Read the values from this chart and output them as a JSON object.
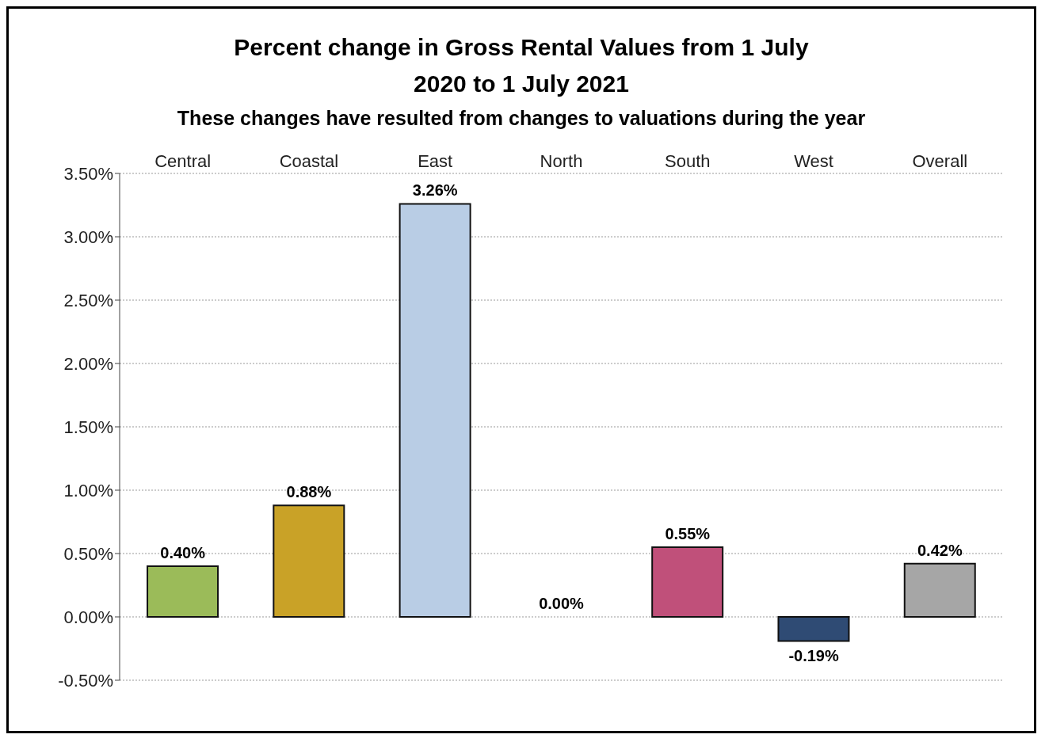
{
  "chart_data": {
    "type": "bar",
    "title": "Percent change in Gross Rental Values from 1 July 2020 to 1 July 2021",
    "subtitle": "These changes have resulted from changes to valuations during the year",
    "categories": [
      "Central",
      "Coastal",
      "East",
      "North",
      "South",
      "West",
      "Overall"
    ],
    "values": [
      0.4,
      0.88,
      3.26,
      0.0,
      0.55,
      -0.19,
      0.42
    ],
    "colors": [
      "#9bbb59",
      "#c9a227",
      "#b9cde5",
      "#808080",
      "#c0507a",
      "#2f4b74",
      "#a6a6a6"
    ],
    "value_labels": [
      "0.40%",
      "0.88%",
      "3.26%",
      "0.00%",
      "0.55%",
      "-0.19%",
      "0.42%"
    ],
    "ylim": [
      -0.5,
      3.5
    ],
    "yticks": [
      {
        "value": -0.5,
        "label": "-0.50%"
      },
      {
        "value": 0,
        "label": "0.00%"
      },
      {
        "value": 0.5,
        "label": "0.50%"
      },
      {
        "value": 1,
        "label": "1.00%"
      },
      {
        "value": 1.5,
        "label": "1.50%"
      },
      {
        "value": 2,
        "label": "2.00%"
      },
      {
        "value": 2.5,
        "label": "2.50%"
      },
      {
        "value": 3,
        "label": "3.00%"
      },
      {
        "value": 3.5,
        "label": "3.50%"
      }
    ],
    "grid": "y"
  }
}
